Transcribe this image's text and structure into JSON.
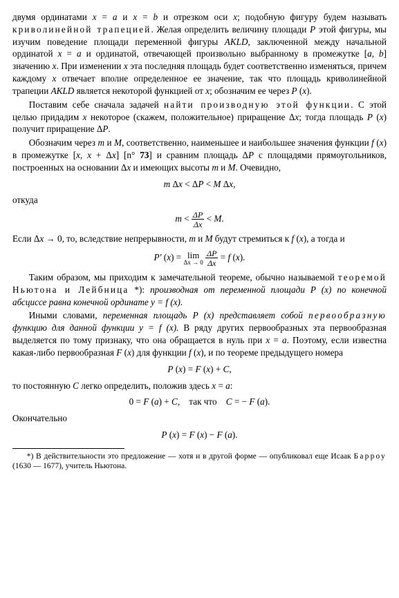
{
  "p1": "двумя ординатами x = a и x = b и отрезком оси x; подобную фигуру будем называть ",
  "p1_em": "криволинейной трапецией",
  "p1b": ". Желая определить величину площади P этой фигуры, мы изучим поведение площади переменной фигуры AKLD, заключенной между начальной ординатой x = a и ординатой, отвечающей произвольно выбранному в промежутке [a, b] значению x. При изменении x эта последняя площадь будет соответственно изменяться, причем каждому x отвечает вполне определенное ее значение, так что площадь криволинейной трапеции AKLD является некоторой функцией от x; обозначим ее через P (x).",
  "p2a": "Поставим себе сначала задачей ",
  "p2_em": "найти производную этой функции",
  "p2b": ". С этой целью придадим x некоторое (скажем, положительное) приращение Δx; тогда площадь P (x) получит приращение ΔP.",
  "p3": "Обозначим через m и M, соответственно, наименьшее и наибольшее значения функции f (x) в промежутке [x, x + Δx] [n° 73] и сравним площадь ΔP с площадями прямоугольников, построенных на основании Δx и имеющих высоты m и M. Очевидно,",
  "eq1": "m Δx < ΔP < M Δx,",
  "p4": "откуда",
  "eq2a": "m <",
  "eq2_num": "ΔP",
  "eq2_den": "Δx",
  "eq2b": "< M.",
  "p5": "Если Δx → 0, то, вследствие непрерывности, m и M будут стремиться к f (x), а тогда и",
  "eq3a": "P′ (x) =",
  "eq3_lim": "lim",
  "eq3_sub": "Δx → 0",
  "eq3_num": "ΔP",
  "eq3_den": "Δx",
  "eq3b": "= f (x).",
  "p6a": "Таким образом, мы приходим к замечательной теореме, обычно называемой ",
  "p6_em1": "теоремой Ньютона и Лейбница",
  "p6_star": " *): ",
  "p6_em2": "производная от переменной площади P (x) по конечной абсциссе равна конечной ординате y = f (x).",
  "p7a": "Иными словами, ",
  "p7_em1": "переменная площадь P (x) представляет собой первообразную функцию для данной функции y = f (x).",
  "p7b": " В ряду других первообразных эта первообразная выделяется по тому признаку, что она обращается в нуль при x = a. Поэтому, если известна какая-либо первообразная F (x) для функции f (x), и по теореме предыдущего номера",
  "eq4": "P (x) = F (x) + C,",
  "p8": "то постоянную C легко определить, положив здесь x = a:",
  "eq5": "0 = F (a) + C,    так что    C = − F (a).",
  "p9": "Окончательно",
  "eq6": "P (x) = F (x) − F (a).",
  "footnote": "*) В действительности это предложение — хотя и в другой форме — опубликовал еще Исаак Барроу (1630 — 1677), учитель Ньютона."
}
